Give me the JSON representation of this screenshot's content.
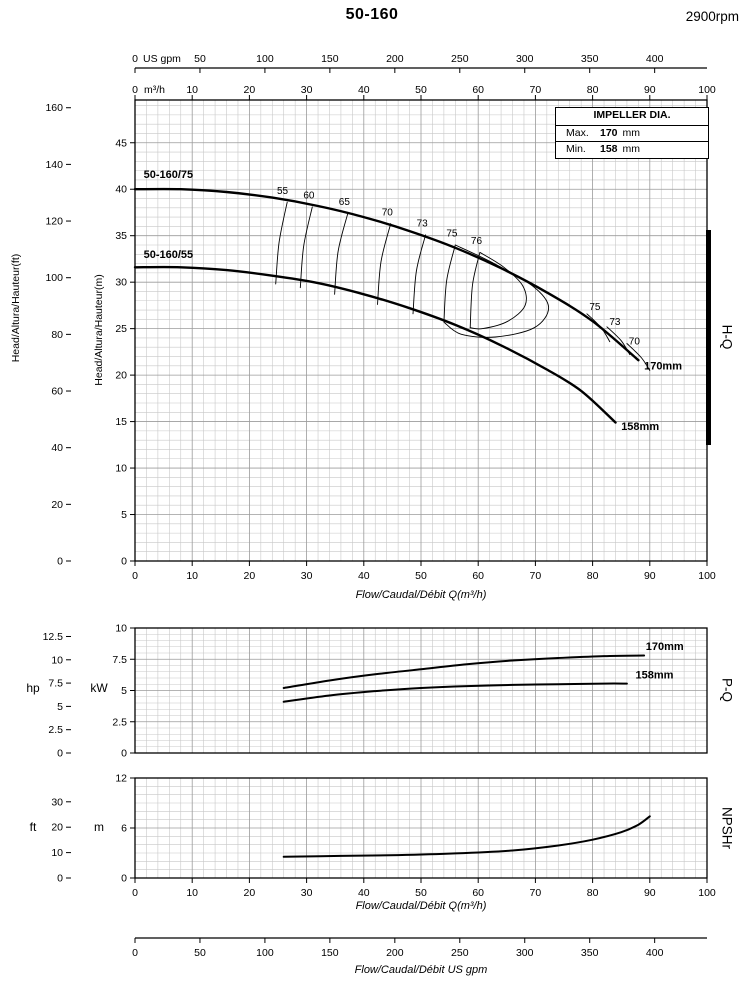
{
  "page": {
    "title": "50-160",
    "rpm": "2900rpm"
  },
  "impeller_box": {
    "header": "IMPELLER DIA.",
    "rows": [
      {
        "label": "Max.",
        "value": "170",
        "unit": "mm"
      },
      {
        "label": "Min.",
        "value": "158",
        "unit": "mm"
      }
    ]
  },
  "side_labels": {
    "hq": "H-Q",
    "pq": "P-Q",
    "npshr": "NPSHr"
  },
  "axis_labels": {
    "head_ft": "Head/Altura/Hauteur(ft)",
    "head_m": "Head/Altura/Hauteur(m)",
    "hp": "hp",
    "kw": "kW",
    "ft": "ft",
    "m": "m",
    "flow_m3h": "Flow/Caudal/Débit Q(m³/h)",
    "flow_gpm": "Flow/Caudal/Débit  US gpm",
    "top_gpm_unit": "US gpm",
    "top_m3h_unit": "m³/h"
  },
  "chart_data": [
    {
      "id": "hq",
      "type": "line",
      "title": "H-Q",
      "x": {
        "unit": "m³/h",
        "range": [
          0,
          100
        ],
        "ticks": [
          0,
          10,
          20,
          30,
          40,
          50,
          60,
          70,
          80,
          90,
          100
        ]
      },
      "x2": {
        "unit": "US gpm",
        "ticks": [
          0,
          50,
          100,
          150,
          200,
          250,
          300,
          350,
          400
        ],
        "gpm_per_m3h": 4.4029
      },
      "y": {
        "unit": "m",
        "range": [
          0,
          49.6
        ],
        "ticks": [
          0,
          5,
          10,
          15,
          20,
          25,
          30,
          35,
          40,
          45
        ]
      },
      "y2": {
        "unit": "ft",
        "ticks": [
          0,
          20,
          40,
          60,
          80,
          100,
          120,
          140,
          160
        ],
        "ft_per_m": 3.2808
      },
      "grid": {
        "x_minor": 2,
        "x_major": 10,
        "y_minor": 1,
        "y_major": 5
      },
      "series": [
        {
          "name": "50-160/75",
          "impeller": "170mm",
          "label_pos": [
            1.5,
            41.2
          ],
          "end_label_pos": [
            89,
            20.6
          ],
          "points": [
            [
              0,
              40
            ],
            [
              8,
              40
            ],
            [
              16,
              39.7
            ],
            [
              24,
              39.1
            ],
            [
              32,
              38.2
            ],
            [
              40,
              37
            ],
            [
              48,
              35.5
            ],
            [
              56,
              33.7
            ],
            [
              64,
              31.5
            ],
            [
              72,
              28.9
            ],
            [
              80,
              25.8
            ],
            [
              88,
              21.6
            ]
          ]
        },
        {
          "name": "50-160/55",
          "impeller": "158mm",
          "label_pos": [
            1.5,
            32.6
          ],
          "end_label_pos": [
            85,
            14.1
          ],
          "points": [
            [
              0,
              31.6
            ],
            [
              8,
              31.6
            ],
            [
              16,
              31.3
            ],
            [
              24,
              30.7
            ],
            [
              32,
              29.9
            ],
            [
              40,
              28.7
            ],
            [
              48,
              27.2
            ],
            [
              56,
              25.4
            ],
            [
              64,
              23.2
            ],
            [
              72,
              20.6
            ],
            [
              78,
              18.3
            ],
            [
              84,
              14.9
            ]
          ]
        }
      ],
      "efficiency_contours": [
        {
          "label": "55",
          "label_pos": [
            25.8,
            39.5
          ],
          "points": [
            [
              26.6,
              38.6
            ],
            [
              25.2,
              34.3
            ],
            [
              24.6,
              29.8
            ]
          ]
        },
        {
          "label": "60",
          "label_pos": [
            30.4,
            39.0
          ],
          "points": [
            [
              31.0,
              38.1
            ],
            [
              29.5,
              33.9
            ],
            [
              28.9,
              29.4
            ]
          ]
        },
        {
          "label": "65",
          "label_pos": [
            36.6,
            38.3
          ],
          "points": [
            [
              37.2,
              37.4
            ],
            [
              35.5,
              33.3
            ],
            [
              34.9,
              28.7
            ]
          ]
        },
        {
          "label": "70",
          "label_pos": [
            44.1,
            37.2
          ],
          "points": [
            [
              44.7,
              36.3
            ],
            [
              43.0,
              32.2
            ],
            [
              42.4,
              27.6
            ]
          ]
        },
        {
          "label": "73",
          "label_pos": [
            50.2,
            36.0
          ],
          "points": [
            [
              50.8,
              35.1
            ],
            [
              49.2,
              31.2
            ],
            [
              48.6,
              26.6
            ]
          ]
        },
        {
          "label": "75",
          "label_pos": [
            55.4,
            34.9
          ],
          "points": [
            [
              56.0,
              34.0
            ],
            [
              54.5,
              30.2
            ],
            [
              54.0,
              25.7
            ]
          ]
        },
        {
          "label": "76",
          "label_pos": [
            59.7,
            34.1
          ],
          "points": [
            [
              60.3,
              33.2
            ],
            [
              59.0,
              29.7
            ],
            [
              58.6,
              25.1
            ]
          ]
        },
        {
          "label": "75",
          "label_pos": [
            80.4,
            27.0
          ],
          "points": [
            [
              79.0,
              26.6
            ],
            [
              81.5,
              25.1
            ],
            [
              83.0,
              23.6
            ]
          ]
        },
        {
          "label": "73",
          "label_pos": [
            83.9,
            25.4
          ],
          "points": [
            [
              82.5,
              25.2
            ],
            [
              85.0,
              23.7
            ],
            [
              86.5,
              22.2
            ]
          ]
        },
        {
          "label": "70",
          "label_pos": [
            87.3,
            23.3
          ],
          "points": [
            [
              86.0,
              23.4
            ],
            [
              88.5,
              21.9
            ],
            [
              90.0,
              20.5
            ]
          ]
        }
      ],
      "efficiency_islands": [
        {
          "points": [
            [
              60.3,
              33.2
            ],
            [
              64.5,
              31.6
            ],
            [
              67.8,
              29.6
            ],
            [
              68.2,
              27.5
            ],
            [
              65.2,
              25.8
            ],
            [
              60.8,
              25.0
            ],
            [
              58.6,
              25.1
            ]
          ]
        },
        {
          "points": [
            [
              56.0,
              34.0
            ],
            [
              62.5,
              32.1
            ],
            [
              69.5,
              29.6
            ],
            [
              72.3,
              27.3
            ],
            [
              69.8,
              25.1
            ],
            [
              63.0,
              24.1
            ],
            [
              57.0,
              24.4
            ],
            [
              54.0,
              25.7
            ]
          ]
        }
      ]
    },
    {
      "id": "pq",
      "type": "line",
      "title": "P-Q",
      "x": {
        "unit": "m³/h",
        "range": [
          0,
          100
        ]
      },
      "y": {
        "unit": "kW",
        "range": [
          0,
          10
        ],
        "ticks": [
          0,
          2.5,
          5,
          7.5,
          10
        ]
      },
      "y2": {
        "unit": "hp",
        "ticks": [
          0,
          2.5,
          5,
          7.5,
          10,
          12.5
        ],
        "hp_per_kw": 1.341
      },
      "grid": {
        "x_minor": 2,
        "x_major": 10,
        "y_minor": 0.5,
        "y_major": 2.5
      },
      "series": [
        {
          "name": "170mm",
          "end_label_pos": [
            89.3,
            8.25
          ],
          "points": [
            [
              26,
              5.2
            ],
            [
              34,
              5.8
            ],
            [
              42,
              6.3
            ],
            [
              50,
              6.7
            ],
            [
              58,
              7.1
            ],
            [
              66,
              7.4
            ],
            [
              74,
              7.6
            ],
            [
              82,
              7.75
            ],
            [
              89,
              7.8
            ]
          ]
        },
        {
          "name": "158mm",
          "end_label_pos": [
            87.5,
            5.98
          ],
          "points": [
            [
              26,
              4.1
            ],
            [
              34,
              4.6
            ],
            [
              42,
              4.95
            ],
            [
              50,
              5.2
            ],
            [
              58,
              5.35
            ],
            [
              66,
              5.45
            ],
            [
              74,
              5.5
            ],
            [
              82,
              5.55
            ],
            [
              86,
              5.55
            ]
          ]
        }
      ]
    },
    {
      "id": "npshr",
      "type": "line",
      "title": "NPSHr",
      "x": {
        "unit": "m³/h",
        "range": [
          0,
          100
        ],
        "ticks": [
          0,
          10,
          20,
          30,
          40,
          50,
          60,
          70,
          80,
          90,
          100
        ]
      },
      "y": {
        "unit": "m",
        "range": [
          0,
          12
        ],
        "ticks": [
          0,
          6,
          12
        ]
      },
      "y2": {
        "unit": "ft",
        "ticks": [
          0,
          10,
          20,
          30
        ],
        "ft_per_m": 3.2808
      },
      "grid": {
        "x_minor": 2,
        "x_major": 10,
        "y_minor": 1,
        "y_major": 6
      },
      "series": [
        {
          "name": "NPSHr",
          "points": [
            [
              26,
              2.55
            ],
            [
              36,
              2.65
            ],
            [
              46,
              2.75
            ],
            [
              56,
              2.95
            ],
            [
              66,
              3.3
            ],
            [
              74,
              3.9
            ],
            [
              80,
              4.6
            ],
            [
              85,
              5.5
            ],
            [
              88,
              6.4
            ],
            [
              90,
              7.4
            ]
          ]
        }
      ]
    }
  ],
  "bottom_axis": {
    "unit": "US gpm",
    "ticks": [
      0,
      50,
      100,
      150,
      200,
      250,
      300,
      350,
      400
    ]
  }
}
